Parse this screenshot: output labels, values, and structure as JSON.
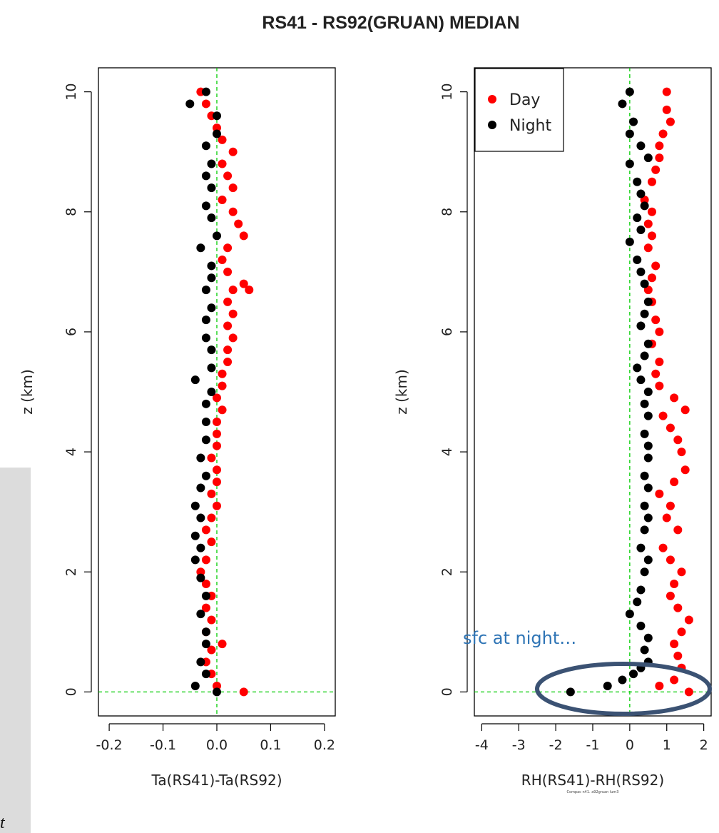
{
  "title": "RS41 - RS92(GRUAN) MEDIAN",
  "left_fragment": "t",
  "colors": {
    "day": "#ff0000",
    "night": "#000000",
    "zero_line": "#00cc00",
    "annotation": "#2e74b5",
    "ellipse": "#3b5273"
  },
  "chart_data": [
    {
      "type": "scatter",
      "xlabel": "Ta(RS41)-Ta(RS92)",
      "ylabel": "z (km)",
      "xlim": [
        -0.22,
        0.22
      ],
      "ylim": [
        -0.4,
        10.4
      ],
      "xticks": [
        "-0.2",
        "-0.1",
        "0.0",
        "0.1",
        "0.2"
      ],
      "xtick_values": [
        -0.2,
        -0.1,
        0.0,
        0.1,
        0.2
      ],
      "yticks": [
        "0",
        "2",
        "4",
        "6",
        "8",
        "10"
      ],
      "ytick_values": [
        0,
        2,
        4,
        6,
        8,
        10
      ],
      "zero_lines": true,
      "series": [
        {
          "name": "Day",
          "color": "#ff0000",
          "points": [
            [
              0.05,
              0.0
            ],
            [
              0.0,
              0.1
            ],
            [
              -0.01,
              0.3
            ],
            [
              -0.02,
              0.5
            ],
            [
              -0.01,
              0.7
            ],
            [
              0.01,
              0.8
            ],
            [
              -0.02,
              1.0
            ],
            [
              -0.01,
              1.2
            ],
            [
              -0.02,
              1.4
            ],
            [
              -0.01,
              1.6
            ],
            [
              -0.02,
              1.8
            ],
            [
              -0.03,
              2.0
            ],
            [
              -0.02,
              2.2
            ],
            [
              -0.01,
              2.5
            ],
            [
              -0.02,
              2.7
            ],
            [
              -0.01,
              2.9
            ],
            [
              0.0,
              3.1
            ],
            [
              -0.01,
              3.3
            ],
            [
              0.0,
              3.5
            ],
            [
              0.0,
              3.7
            ],
            [
              -0.01,
              3.9
            ],
            [
              0.0,
              4.1
            ],
            [
              0.0,
              4.3
            ],
            [
              0.0,
              4.5
            ],
            [
              0.01,
              4.7
            ],
            [
              0.0,
              4.9
            ],
            [
              0.01,
              5.1
            ],
            [
              0.01,
              5.3
            ],
            [
              0.02,
              5.5
            ],
            [
              0.02,
              5.7
            ],
            [
              0.03,
              5.9
            ],
            [
              0.02,
              6.1
            ],
            [
              0.03,
              6.3
            ],
            [
              0.02,
              6.5
            ],
            [
              0.03,
              6.7
            ],
            [
              0.05,
              6.8
            ],
            [
              0.06,
              6.7
            ],
            [
              0.02,
              7.0
            ],
            [
              0.01,
              7.2
            ],
            [
              0.02,
              7.4
            ],
            [
              0.05,
              7.6
            ],
            [
              0.04,
              7.8
            ],
            [
              0.03,
              8.0
            ],
            [
              0.01,
              8.2
            ],
            [
              0.03,
              8.4
            ],
            [
              0.02,
              8.6
            ],
            [
              0.01,
              8.8
            ],
            [
              0.03,
              9.0
            ],
            [
              0.01,
              9.2
            ],
            [
              0.0,
              9.4
            ],
            [
              -0.01,
              9.6
            ],
            [
              -0.02,
              9.8
            ],
            [
              -0.03,
              10.0
            ]
          ]
        },
        {
          "name": "Night",
          "color": "#000000",
          "points": [
            [
              0.0,
              0.0
            ],
            [
              -0.04,
              0.1
            ],
            [
              -0.02,
              0.3
            ],
            [
              -0.03,
              0.5
            ],
            [
              -0.02,
              0.8
            ],
            [
              -0.02,
              1.0
            ],
            [
              -0.03,
              1.3
            ],
            [
              -0.02,
              1.6
            ],
            [
              -0.03,
              1.9
            ],
            [
              -0.04,
              2.2
            ],
            [
              -0.03,
              2.4
            ],
            [
              -0.04,
              2.6
            ],
            [
              -0.03,
              2.9
            ],
            [
              -0.04,
              3.1
            ],
            [
              -0.03,
              3.4
            ],
            [
              -0.02,
              3.6
            ],
            [
              -0.03,
              3.9
            ],
            [
              -0.02,
              4.2
            ],
            [
              -0.02,
              4.5
            ],
            [
              -0.02,
              4.8
            ],
            [
              -0.01,
              5.0
            ],
            [
              -0.04,
              5.2
            ],
            [
              -0.01,
              5.4
            ],
            [
              -0.01,
              5.7
            ],
            [
              -0.02,
              5.9
            ],
            [
              -0.02,
              6.2
            ],
            [
              -0.01,
              6.4
            ],
            [
              -0.02,
              6.7
            ],
            [
              -0.01,
              6.9
            ],
            [
              -0.01,
              7.1
            ],
            [
              -0.03,
              7.4
            ],
            [
              0.0,
              7.6
            ],
            [
              -0.01,
              7.9
            ],
            [
              -0.02,
              8.1
            ],
            [
              -0.01,
              8.4
            ],
            [
              -0.02,
              8.6
            ],
            [
              -0.01,
              8.8
            ],
            [
              -0.02,
              9.1
            ],
            [
              0.0,
              9.3
            ],
            [
              0.0,
              9.6
            ],
            [
              -0.05,
              9.8
            ],
            [
              -0.02,
              10.0
            ]
          ]
        }
      ]
    },
    {
      "type": "scatter",
      "xlabel": "RH(RS41)-RH(RS92)",
      "ylabel": "z (km)",
      "xlim": [
        -4.2,
        2.2
      ],
      "ylim": [
        -0.4,
        10.4
      ],
      "xticks": [
        "-4",
        "-3",
        "-2",
        "-1",
        "0",
        "1",
        "2"
      ],
      "xtick_values": [
        -4,
        -3,
        -2,
        -1,
        0,
        1,
        2
      ],
      "yticks": [
        "0",
        "2",
        "4",
        "6",
        "8",
        "10"
      ],
      "ytick_values": [
        0,
        2,
        4,
        6,
        8,
        10
      ],
      "zero_lines": true,
      "legend": {
        "position": "top-left",
        "entries": [
          "Day",
          "Night"
        ]
      },
      "credit": "Compac n41. a92gruan lum3",
      "annotation": {
        "text": "sfc at night…"
      },
      "series": [
        {
          "name": "Day",
          "color": "#ff0000",
          "points": [
            [
              1.6,
              0.0
            ],
            [
              0.8,
              0.1
            ],
            [
              1.2,
              0.2
            ],
            [
              1.4,
              0.4
            ],
            [
              1.3,
              0.6
            ],
            [
              1.2,
              0.8
            ],
            [
              1.4,
              1.0
            ],
            [
              1.6,
              1.2
            ],
            [
              1.3,
              1.4
            ],
            [
              1.1,
              1.6
            ],
            [
              1.2,
              1.8
            ],
            [
              1.4,
              2.0
            ],
            [
              1.1,
              2.2
            ],
            [
              0.9,
              2.4
            ],
            [
              1.3,
              2.7
            ],
            [
              1.0,
              2.9
            ],
            [
              1.1,
              3.1
            ],
            [
              0.8,
              3.3
            ],
            [
              1.2,
              3.5
            ],
            [
              1.5,
              3.7
            ],
            [
              1.4,
              4.0
            ],
            [
              1.3,
              4.2
            ],
            [
              1.1,
              4.4
            ],
            [
              0.9,
              4.6
            ],
            [
              1.5,
              4.7
            ],
            [
              1.2,
              4.9
            ],
            [
              0.8,
              5.1
            ],
            [
              0.7,
              5.3
            ],
            [
              0.8,
              5.5
            ],
            [
              0.6,
              5.8
            ],
            [
              0.8,
              6.0
            ],
            [
              0.7,
              6.2
            ],
            [
              0.6,
              6.5
            ],
            [
              0.5,
              6.7
            ],
            [
              0.6,
              6.9
            ],
            [
              0.7,
              7.1
            ],
            [
              0.5,
              7.4
            ],
            [
              0.6,
              7.6
            ],
            [
              0.5,
              7.8
            ],
            [
              0.6,
              8.0
            ],
            [
              0.4,
              8.2
            ],
            [
              0.6,
              8.5
            ],
            [
              0.7,
              8.7
            ],
            [
              0.8,
              8.9
            ],
            [
              0.8,
              9.1
            ],
            [
              0.9,
              9.3
            ],
            [
              1.1,
              9.5
            ],
            [
              1.0,
              9.7
            ],
            [
              1.0,
              10.0
            ]
          ]
        },
        {
          "name": "Night",
          "color": "#000000",
          "points": [
            [
              -1.6,
              0.0
            ],
            [
              -0.6,
              0.1
            ],
            [
              -0.2,
              0.2
            ],
            [
              0.1,
              0.3
            ],
            [
              0.3,
              0.4
            ],
            [
              0.5,
              0.5
            ],
            [
              0.4,
              0.7
            ],
            [
              0.5,
              0.9
            ],
            [
              0.3,
              1.1
            ],
            [
              0.0,
              1.3
            ],
            [
              0.2,
              1.5
            ],
            [
              0.3,
              1.7
            ],
            [
              0.4,
              2.0
            ],
            [
              0.5,
              2.2
            ],
            [
              0.3,
              2.4
            ],
            [
              0.4,
              2.7
            ],
            [
              0.5,
              2.9
            ],
            [
              0.4,
              3.1
            ],
            [
              0.5,
              3.4
            ],
            [
              0.4,
              3.6
            ],
            [
              0.5,
              3.9
            ],
            [
              0.5,
              4.1
            ],
            [
              0.4,
              4.3
            ],
            [
              0.5,
              4.6
            ],
            [
              0.4,
              4.8
            ],
            [
              0.5,
              5.0
            ],
            [
              0.3,
              5.2
            ],
            [
              0.2,
              5.4
            ],
            [
              0.4,
              5.6
            ],
            [
              0.5,
              5.8
            ],
            [
              0.3,
              6.1
            ],
            [
              0.4,
              6.3
            ],
            [
              0.5,
              6.5
            ],
            [
              0.4,
              6.8
            ],
            [
              0.3,
              7.0
            ],
            [
              0.2,
              7.2
            ],
            [
              0.0,
              7.5
            ],
            [
              0.3,
              7.7
            ],
            [
              0.2,
              7.9
            ],
            [
              0.4,
              8.1
            ],
            [
              0.3,
              8.3
            ],
            [
              0.2,
              8.5
            ],
            [
              0.5,
              8.9
            ],
            [
              0.0,
              8.8
            ],
            [
              0.3,
              9.1
            ],
            [
              0.0,
              9.3
            ],
            [
              0.1,
              9.5
            ],
            [
              -0.2,
              9.8
            ],
            [
              0.0,
              10.0
            ]
          ]
        }
      ]
    }
  ]
}
